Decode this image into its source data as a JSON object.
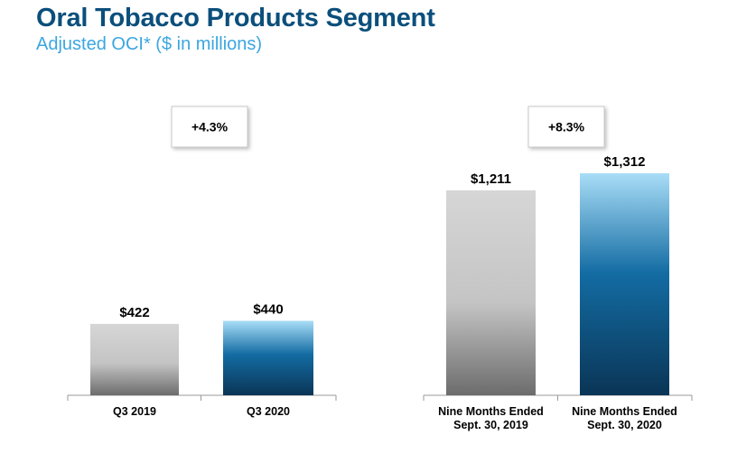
{
  "header": {
    "title": "Oral Tobacco Products Segment",
    "subtitle": "Adjusted OCI* ($ in millions)"
  },
  "colors": {
    "title": "#0b4f7c",
    "subtitle": "#3ba6e0",
    "prior_gradient": [
      "#d6d6d6",
      "#c4c4c4",
      "#6c6c6c"
    ],
    "current_gradient": [
      "#a9ddf7",
      "#136ca3",
      "#0a3556"
    ]
  },
  "chart_data": [
    {
      "type": "bar",
      "title": "",
      "unit": "$ in millions",
      "categories": [
        [
          "Q3 2019"
        ],
        [
          "Q3 2020"
        ]
      ],
      "values": [
        422,
        440
      ],
      "value_labels": [
        "$422",
        "$440"
      ],
      "change_label": "+4.3%",
      "ylim": [
        0,
        1600
      ]
    },
    {
      "type": "bar",
      "title": "",
      "unit": "$ in millions",
      "categories": [
        [
          "Nine Months Ended",
          "Sept. 30, 2019"
        ],
        [
          "Nine Months Ended",
          "Sept. 30, 2020"
        ]
      ],
      "values": [
        1211,
        1312
      ],
      "value_labels": [
        "$1,211",
        "$1,312"
      ],
      "change_label": "+8.3%",
      "ylim": [
        0,
        1600
      ]
    }
  ]
}
